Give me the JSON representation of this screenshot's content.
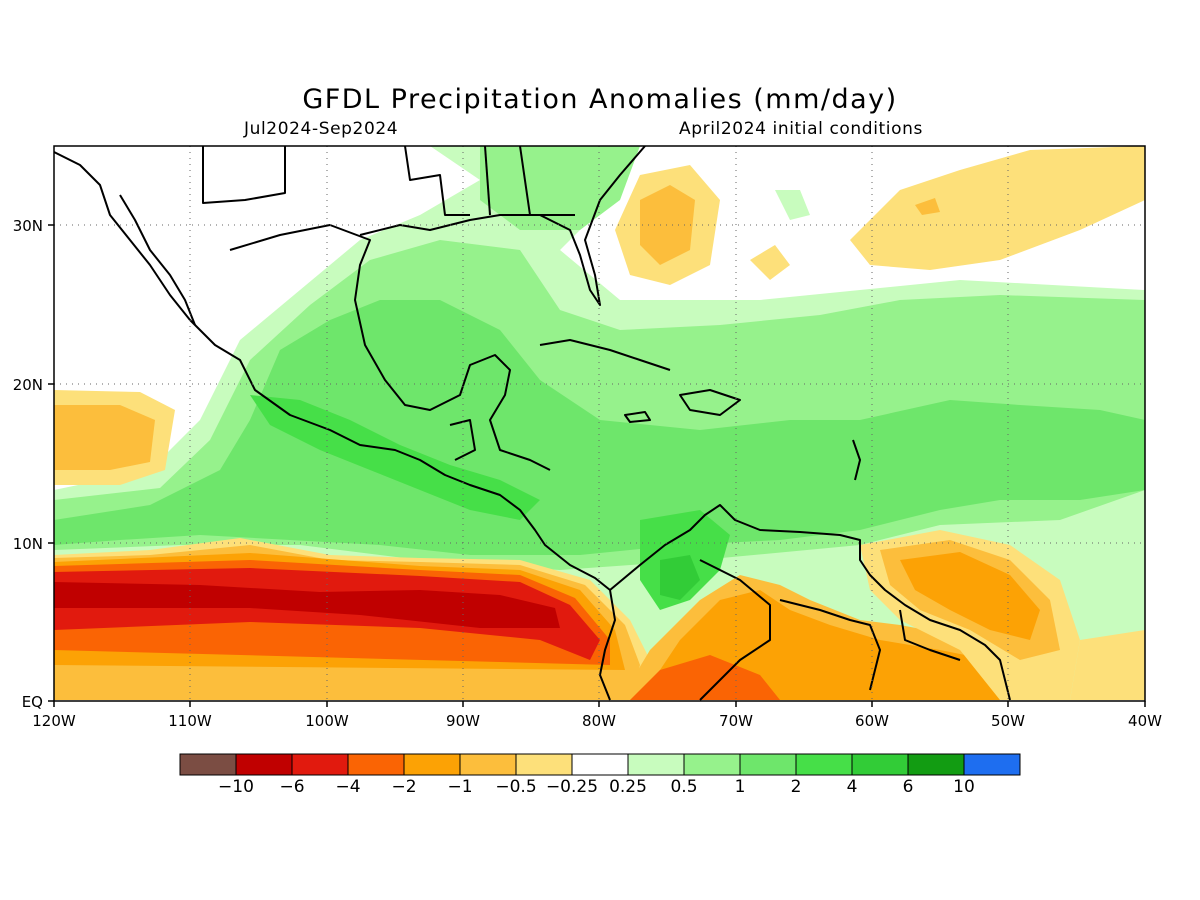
{
  "title": "GFDL Precipitation Anomalies (mm/day)",
  "period": "Jul2024-Sep2024",
  "initial_conditions": "April2024 initial conditions",
  "map": {
    "lon_labels": [
      "120W",
      "110W",
      "100W",
      "90W",
      "80W",
      "70W",
      "60W",
      "50W",
      "40W"
    ],
    "lat_labels": [
      "EQ",
      "10N",
      "20N",
      "30N"
    ]
  },
  "colorbar": {
    "labels": [
      "−10",
      "−6",
      "−4",
      "−2",
      "−1",
      "−0.5",
      "−0.25",
      "0.25",
      "0.5",
      "1",
      "2",
      "4",
      "6",
      "10"
    ],
    "colors": [
      "#7b4d43",
      "#c00000",
      "#e11a0e",
      "#fa6404",
      "#fca205",
      "#fcbe3c",
      "#fde07a",
      "#ffffff",
      "#c8fcbe",
      "#96f28c",
      "#6ee66b",
      "#46df48",
      "#32cc37",
      "#129c12",
      "#1e6ef0"
    ]
  }
}
